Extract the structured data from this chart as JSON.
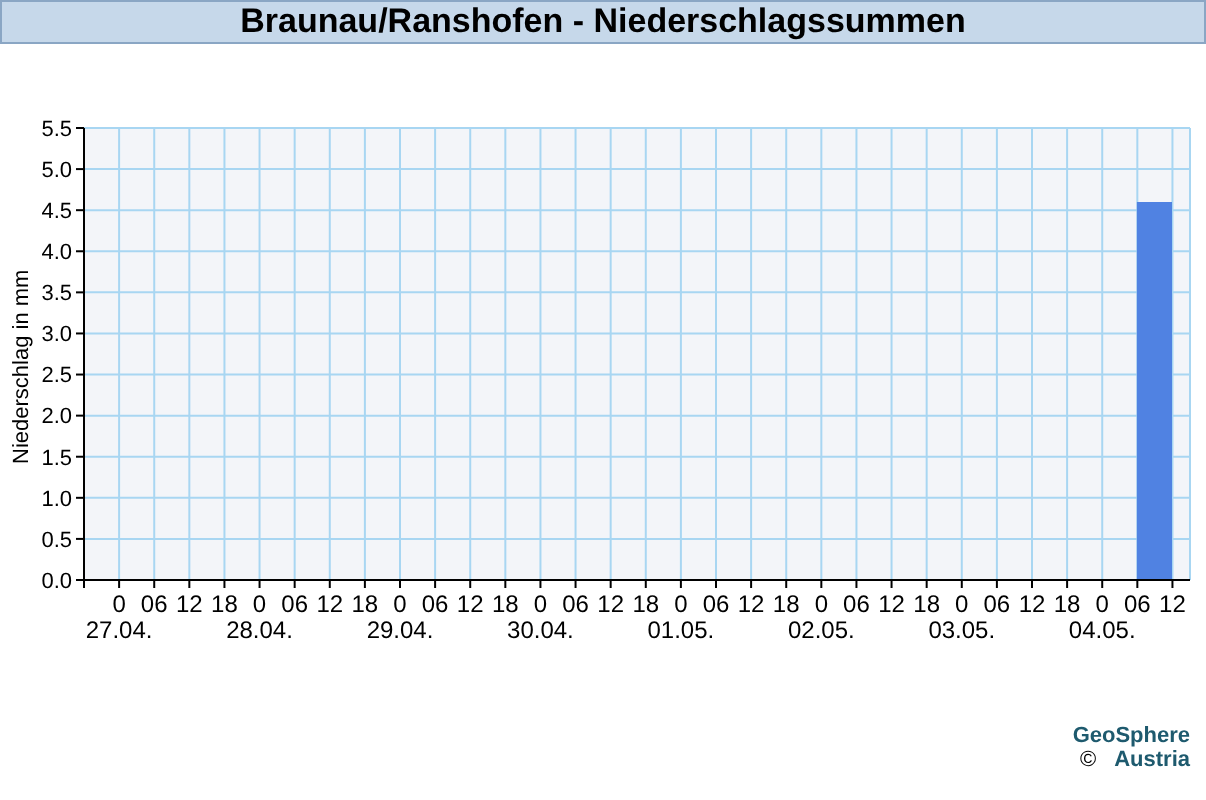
{
  "chart_data": {
    "type": "bar",
    "title": "Braunau/Ranshofen - Niederschlagssummen",
    "ylabel": "Niederschlag in mm",
    "x": [
      "--05-04T09:00"
    ],
    "series": [
      {
        "color": "#5082e2",
        "values": [
          4.6
        ]
      }
    ],
    "xlim": [
      "--04-26T18:00",
      "--05-04T15:00"
    ],
    "xticks": [
      {
        "value": "--04-26T18:00",
        "label": null
      },
      {
        "value": "--04-27T00:00",
        "label": "0\n27.04."
      },
      {
        "value": "--04-27T06:00",
        "label": "06"
      },
      {
        "value": "--04-27T12:00",
        "label": "12"
      },
      {
        "value": "--04-27T18:00",
        "label": "18"
      },
      {
        "value": "--04-28T00:00",
        "label": "0\n28.04."
      },
      {
        "value": "--04-28T06:00",
        "label": "06"
      },
      {
        "value": "--04-28T12:00",
        "label": "12"
      },
      {
        "value": "--04-28T18:00",
        "label": "18"
      },
      {
        "value": "--04-29T00:00",
        "label": "0\n29.04."
      },
      {
        "value": "--04-29T06:00",
        "label": "06"
      },
      {
        "value": "--04-29T12:00",
        "label": "12"
      },
      {
        "value": "--04-29T18:00",
        "label": "18"
      },
      {
        "value": "--04-30T00:00",
        "label": "0\n30.04."
      },
      {
        "value": "--04-30T06:00",
        "label": "06"
      },
      {
        "value": "--04-30T12:00",
        "label": "12"
      },
      {
        "value": "--04-30T18:00",
        "label": "18"
      },
      {
        "value": "--05-01T00:00",
        "label": "0\n01.05."
      },
      {
        "value": "--05-01T06:00",
        "label": "06"
      },
      {
        "value": "--05-01T12:00",
        "label": "12"
      },
      {
        "value": "--05-01T18:00",
        "label": "18"
      },
      {
        "value": "--05-02T00:00",
        "label": "0\n02.05."
      },
      {
        "value": "--05-02T06:00",
        "label": "06"
      },
      {
        "value": "--05-02T12:00",
        "label": "12"
      },
      {
        "value": "--05-02T18:00",
        "label": "18"
      },
      {
        "value": "--05-03T00:00",
        "label": "0\n03.05."
      },
      {
        "value": "--05-03T06:00",
        "label": "06"
      },
      {
        "value": "--05-03T12:00",
        "label": "12"
      },
      {
        "value": "--05-03T18:00",
        "label": "18"
      },
      {
        "value": "--05-04T00:00",
        "label": "0\n04.05."
      },
      {
        "value": "--05-04T06:00",
        "label": "06"
      },
      {
        "value": "--05-04T12:00",
        "label": "12"
      }
    ],
    "ylim": [
      0,
      5.5
    ],
    "yticks": [
      {
        "value": 0,
        "label": "0.0"
      },
      {
        "value": 0.5,
        "label": "0.5"
      },
      {
        "value": 1,
        "label": "1.0"
      },
      {
        "value": 1.5,
        "label": "1.5"
      },
      {
        "value": 2,
        "label": "2.0"
      },
      {
        "value": 2.5,
        "label": "2.5"
      },
      {
        "value": 3,
        "label": "3.0"
      },
      {
        "value": 3.5,
        "label": "3.5"
      },
      {
        "value": 4,
        "label": "4.0"
      },
      {
        "value": 4.5,
        "label": "4.5"
      },
      {
        "value": 5,
        "label": "5.0"
      },
      {
        "value": 5.5,
        "label": "5.5"
      }
    ],
    "grid": true,
    "annotations": [
      "©",
      "GeoSphere Austria"
    ]
  }
}
